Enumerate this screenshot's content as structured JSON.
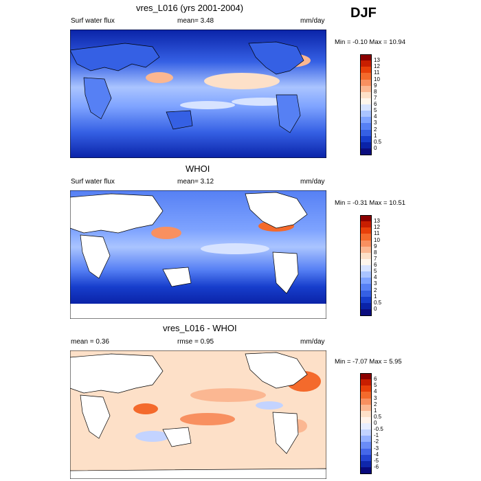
{
  "season": "DJF",
  "panels": [
    {
      "title": "vres_L016 (yrs 2001-2004)",
      "left_label": "Surf water flux",
      "mid_label": "mean=   3.48",
      "units": "mm/day",
      "minmax": "Min =  -0.10 Max =  10.94",
      "colorbar": {
        "labels": [
          "13",
          "12",
          "11",
          "10",
          "9",
          "8",
          "7",
          "6",
          "5",
          "4",
          "3",
          "2",
          "1",
          "0.5",
          "0"
        ],
        "colors": [
          "#8b0000",
          "#c81e00",
          "#e8400a",
          "#f46a2c",
          "#f89060",
          "#fbb792",
          "#fde0c8",
          "#fff6ec",
          "#d7e3ff",
          "#aac4ff",
          "#7ea3ff",
          "#5680f4",
          "#3560e4",
          "#173ecc",
          "#0a23a8",
          "#0b0d7e"
        ]
      }
    },
    {
      "title": "WHOI",
      "left_label": "Surf water flux",
      "mid_label": "mean=   3.12",
      "units": "mm/day",
      "minmax": "Min =  -0.31 Max =  10.51",
      "colorbar": {
        "labels": [
          "13",
          "12",
          "11",
          "10",
          "9",
          "8",
          "7",
          "6",
          "5",
          "4",
          "3",
          "2",
          "1",
          "0.5",
          "0"
        ],
        "colors": [
          "#8b0000",
          "#c81e00",
          "#e8400a",
          "#f46a2c",
          "#f89060",
          "#fbb792",
          "#fde0c8",
          "#fff6ec",
          "#d7e3ff",
          "#aac4ff",
          "#7ea3ff",
          "#5680f4",
          "#3560e4",
          "#173ecc",
          "#0a23a8",
          "#0b0d7e"
        ]
      }
    },
    {
      "title": "vres_L016 - WHOI",
      "left_label": "mean =   0.36",
      "mid_label": "rmse =   0.95",
      "units": "mm/day",
      "minmax": "Min =  -7.07 Max =   5.95",
      "colorbar": {
        "labels": [
          "6",
          "5",
          "4",
          "3",
          "2",
          "1",
          "0.5",
          "0",
          "-0.5",
          "-1",
          "-2",
          "-3",
          "-4",
          "-5",
          "-6"
        ],
        "colors": [
          "#8b0000",
          "#c81e00",
          "#e8400a",
          "#f46a2c",
          "#f89060",
          "#fbb792",
          "#fde0c8",
          "#fff3ea",
          "#e8eeff",
          "#c3d3ff",
          "#95b1ff",
          "#6a8cf6",
          "#4567ea",
          "#2444d2",
          "#0f27ab",
          "#080a7c"
        ]
      }
    }
  ]
}
